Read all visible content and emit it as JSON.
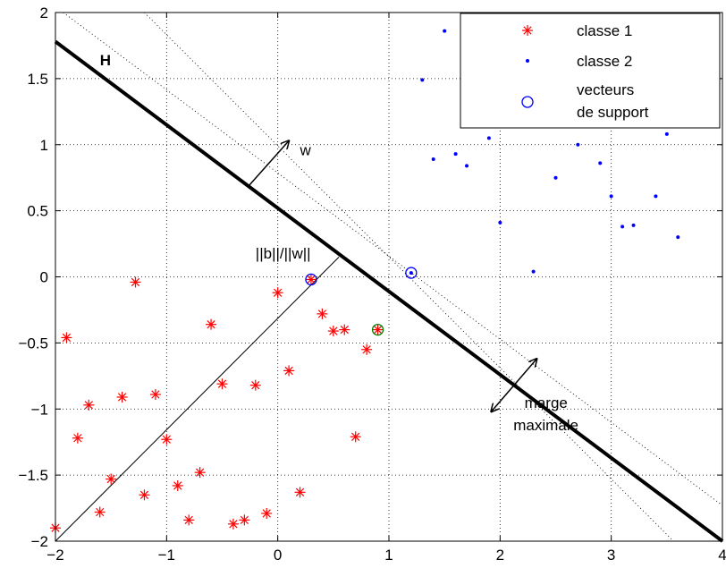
{
  "chart_data": {
    "type": "scatter",
    "xlim": [
      -2,
      4
    ],
    "ylim": [
      -2,
      2
    ],
    "grid": true,
    "x_ticks": [
      -2,
      -1,
      0,
      1,
      2,
      3,
      4
    ],
    "y_ticks": [
      -2,
      -1.5,
      -1,
      -0.5,
      0,
      0.5,
      1,
      1.5,
      2
    ],
    "x_tick_labels": [
      "−2",
      "−1",
      "0",
      "1",
      "2",
      "3",
      "4"
    ],
    "y_tick_labels": [
      "−2",
      "−1.5",
      "−1",
      "−0.5",
      "0",
      "0.5",
      "1",
      "1.5",
      "2"
    ],
    "legend_position": "top-right",
    "series": [
      {
        "name": "classe 1",
        "marker": "asterisk",
        "color": "#ff0000",
        "points": [
          [
            -1.9,
            -0.46
          ],
          [
            -1.28,
            -0.04
          ],
          [
            -1.4,
            -0.91
          ],
          [
            -1.1,
            -0.89
          ],
          [
            -1.7,
            -0.97
          ],
          [
            -1.8,
            -1.22
          ],
          [
            -1.0,
            -1.23
          ],
          [
            -1.5,
            -1.53
          ],
          [
            -1.6,
            -1.78
          ],
          [
            -1.2,
            -1.65
          ],
          [
            -0.9,
            -1.58
          ],
          [
            -0.8,
            -1.84
          ],
          [
            -0.7,
            -1.48
          ],
          [
            -0.4,
            -1.87
          ],
          [
            -0.3,
            -1.84
          ],
          [
            -0.1,
            -1.79
          ],
          [
            -0.6,
            -0.36
          ],
          [
            -0.5,
            -0.81
          ],
          [
            -0.2,
            -0.82
          ],
          [
            0.0,
            -0.12
          ],
          [
            0.1,
            -0.71
          ],
          [
            0.2,
            -1.63
          ],
          [
            0.3,
            -0.02
          ],
          [
            0.4,
            -0.28
          ],
          [
            0.5,
            -0.41
          ],
          [
            0.6,
            -0.4
          ],
          [
            0.7,
            -1.21
          ],
          [
            0.8,
            -0.55
          ],
          [
            0.9,
            -0.4
          ],
          [
            -2.0,
            -1.9
          ]
        ]
      },
      {
        "name": "classe 2",
        "marker": "dot",
        "color": "#0000ff",
        "points": [
          [
            1.2,
            0.03
          ],
          [
            1.3,
            1.49
          ],
          [
            1.4,
            0.89
          ],
          [
            1.5,
            1.86
          ],
          [
            1.6,
            0.93
          ],
          [
            1.7,
            0.84
          ],
          [
            1.9,
            1.05
          ],
          [
            2.0,
            0.41
          ],
          [
            2.3,
            0.04
          ],
          [
            2.5,
            0.75
          ],
          [
            2.7,
            1.0
          ],
          [
            2.9,
            0.86
          ],
          [
            3.0,
            0.61
          ],
          [
            3.1,
            0.38
          ],
          [
            3.2,
            0.39
          ],
          [
            3.4,
            0.61
          ],
          [
            3.5,
            1.08
          ],
          [
            3.6,
            0.3
          ]
        ]
      },
      {
        "name": "vecteurs de support",
        "marker": "circle",
        "color": "#0000ff",
        "points": [
          [
            0.3,
            -0.02
          ],
          [
            1.2,
            0.03
          ]
        ]
      }
    ],
    "extra_circle": {
      "color": "#008000",
      "point": [
        0.9,
        -0.4
      ]
    },
    "hyperplane": {
      "label": "H",
      "x1": -2,
      "y1": 1.78,
      "x2": 4,
      "y2": -2,
      "color": "#000000"
    },
    "margin_lines": [
      {
        "x1": -1.93,
        "y1": 2.0,
        "x2": 4.0,
        "y2": -1.73
      },
      {
        "x1": -1.2,
        "y1": 2.0,
        "x2": 3.56,
        "y2": -2.0
      }
    ],
    "norm_line": {
      "x1": -2.0,
      "y1": -2.0,
      "x2": 0.55,
      "y2": 0.15
    },
    "annotations": {
      "w": "w",
      "bw": "||b||/||w||",
      "marge_line1": "marge",
      "marge_line2": "maximale",
      "H": "H"
    },
    "w_arrow": {
      "x1": -0.27,
      "y1": 0.68,
      "x2": 0.1,
      "y2": 1.03
    },
    "marge_arrow": {
      "x1": 1.92,
      "y1": -1.02,
      "x2": 2.33,
      "y2": -0.62
    },
    "legend": {
      "entries": [
        "classe 1",
        "classe 2",
        "vecteurs",
        "de support"
      ]
    }
  }
}
